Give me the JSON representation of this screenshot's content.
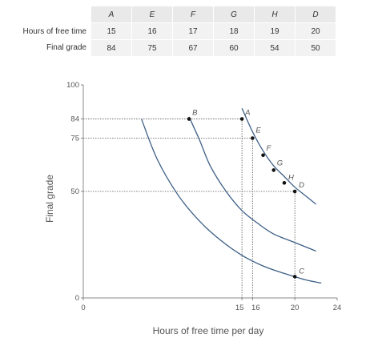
{
  "table": {
    "columns": [
      "A",
      "E",
      "F",
      "G",
      "H",
      "D"
    ],
    "rows": [
      {
        "label": "Hours of free time",
        "values": [
          "15",
          "16",
          "17",
          "18",
          "19",
          "20"
        ]
      },
      {
        "label": "Final grade",
        "values": [
          "84",
          "75",
          "67",
          "60",
          "54",
          "50"
        ]
      }
    ]
  },
  "chart_data": {
    "type": "line",
    "xlabel": "Hours of free time per day",
    "ylabel": "Final grade",
    "xlim": [
      0,
      24
    ],
    "ylim": [
      0,
      100
    ],
    "x_ticks": [
      0,
      15,
      16,
      20,
      24
    ],
    "y_ticks": [
      0,
      50,
      75,
      84,
      100
    ],
    "grid": false,
    "series": [
      {
        "x": [
          5.5,
          7,
          9,
          11,
          13,
          15,
          17,
          19,
          21,
          22.5
        ],
        "y": [
          84,
          65,
          48,
          36,
          27,
          20,
          15,
          11.5,
          8.5,
          7
        ]
      },
      {
        "x": [
          10,
          11,
          12,
          13.5,
          15,
          16.5,
          18,
          20,
          22
        ],
        "y": [
          85,
          74,
          62,
          50,
          41,
          35,
          30,
          26,
          22
        ]
      },
      {
        "x": [
          15,
          16,
          17,
          18,
          19,
          20,
          21,
          22
        ],
        "y": [
          89,
          78,
          69,
          62,
          57,
          52,
          48,
          44
        ]
      }
    ],
    "points": [
      {
        "label": "A",
        "x": 15,
        "y": 84
      },
      {
        "label": "E",
        "x": 16,
        "y": 75
      },
      {
        "label": "F",
        "x": 17,
        "y": 67
      },
      {
        "label": "G",
        "x": 18,
        "y": 60
      },
      {
        "label": "H",
        "x": 19,
        "y": 54
      },
      {
        "label": "D",
        "x": 20,
        "y": 50
      },
      {
        "label": "B",
        "x": 10,
        "y": 84
      },
      {
        "label": "C",
        "x": 20,
        "y": 10
      }
    ],
    "dotted_guides": {
      "vertical_x": [
        15,
        16,
        20
      ],
      "horizontal_y": [
        84,
        75,
        50
      ]
    }
  }
}
